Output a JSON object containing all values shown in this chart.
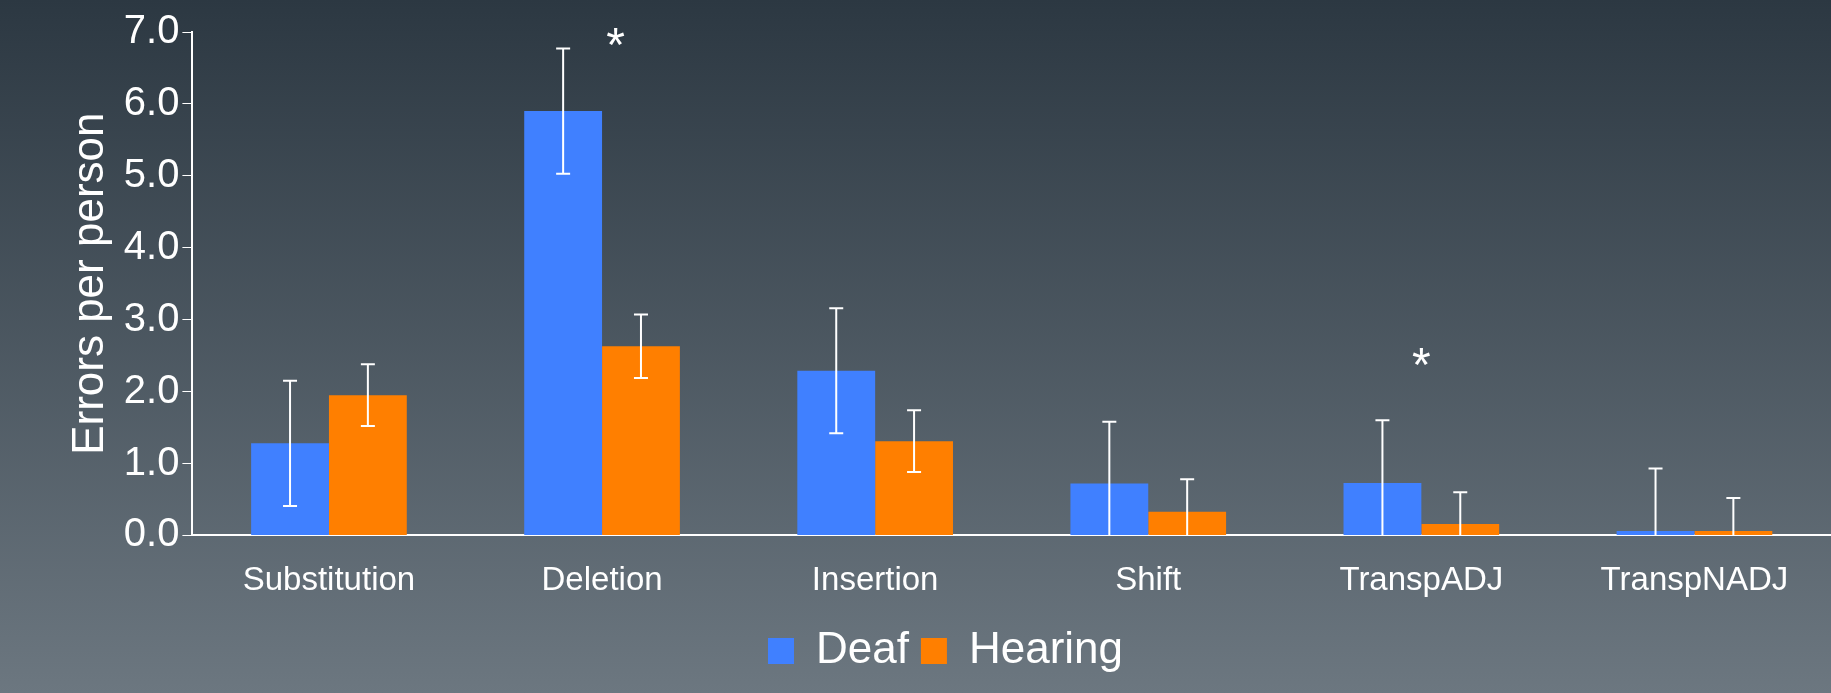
{
  "chart_data": {
    "type": "bar",
    "ylabel": "Errors per person",
    "categories": [
      "Substitution",
      "Deletion",
      "Insertion",
      "Shift",
      "TranspADJ",
      "TranspNADJ"
    ],
    "series": [
      {
        "name": "Deaf",
        "color": "#4080ff",
        "values": [
          1.28,
          5.9,
          2.29,
          0.72,
          0.73,
          0.06
        ],
        "errors": [
          0.87,
          0.87,
          0.87,
          [
            0,
            1.58
          ],
          [
            0,
            1.6
          ],
          [
            0,
            0.93
          ]
        ]
      },
      {
        "name": "Hearing",
        "color": "#ff7f00",
        "values": [
          1.95,
          2.63,
          1.31,
          0.33,
          0.16,
          0.06
        ],
        "errors": [
          0.43,
          0.44,
          0.43,
          [
            0,
            0.78
          ],
          [
            0,
            0.6
          ],
          [
            0,
            0.52
          ]
        ]
      }
    ],
    "ylim": [
      0,
      7
    ],
    "yticks": [
      {
        "value": 0,
        "label": "0.0"
      },
      {
        "value": 1,
        "label": "1.0"
      },
      {
        "value": 2,
        "label": "2.0"
      },
      {
        "value": 3,
        "label": "3.0"
      },
      {
        "value": 4,
        "label": "4.0"
      },
      {
        "value": 5,
        "label": "5.0"
      },
      {
        "value": 6,
        "label": "6.0"
      },
      {
        "value": 7,
        "label": "7.0"
      }
    ],
    "annotations": [
      "*",
      "*"
    ],
    "grid": false,
    "legend": "bottom"
  }
}
